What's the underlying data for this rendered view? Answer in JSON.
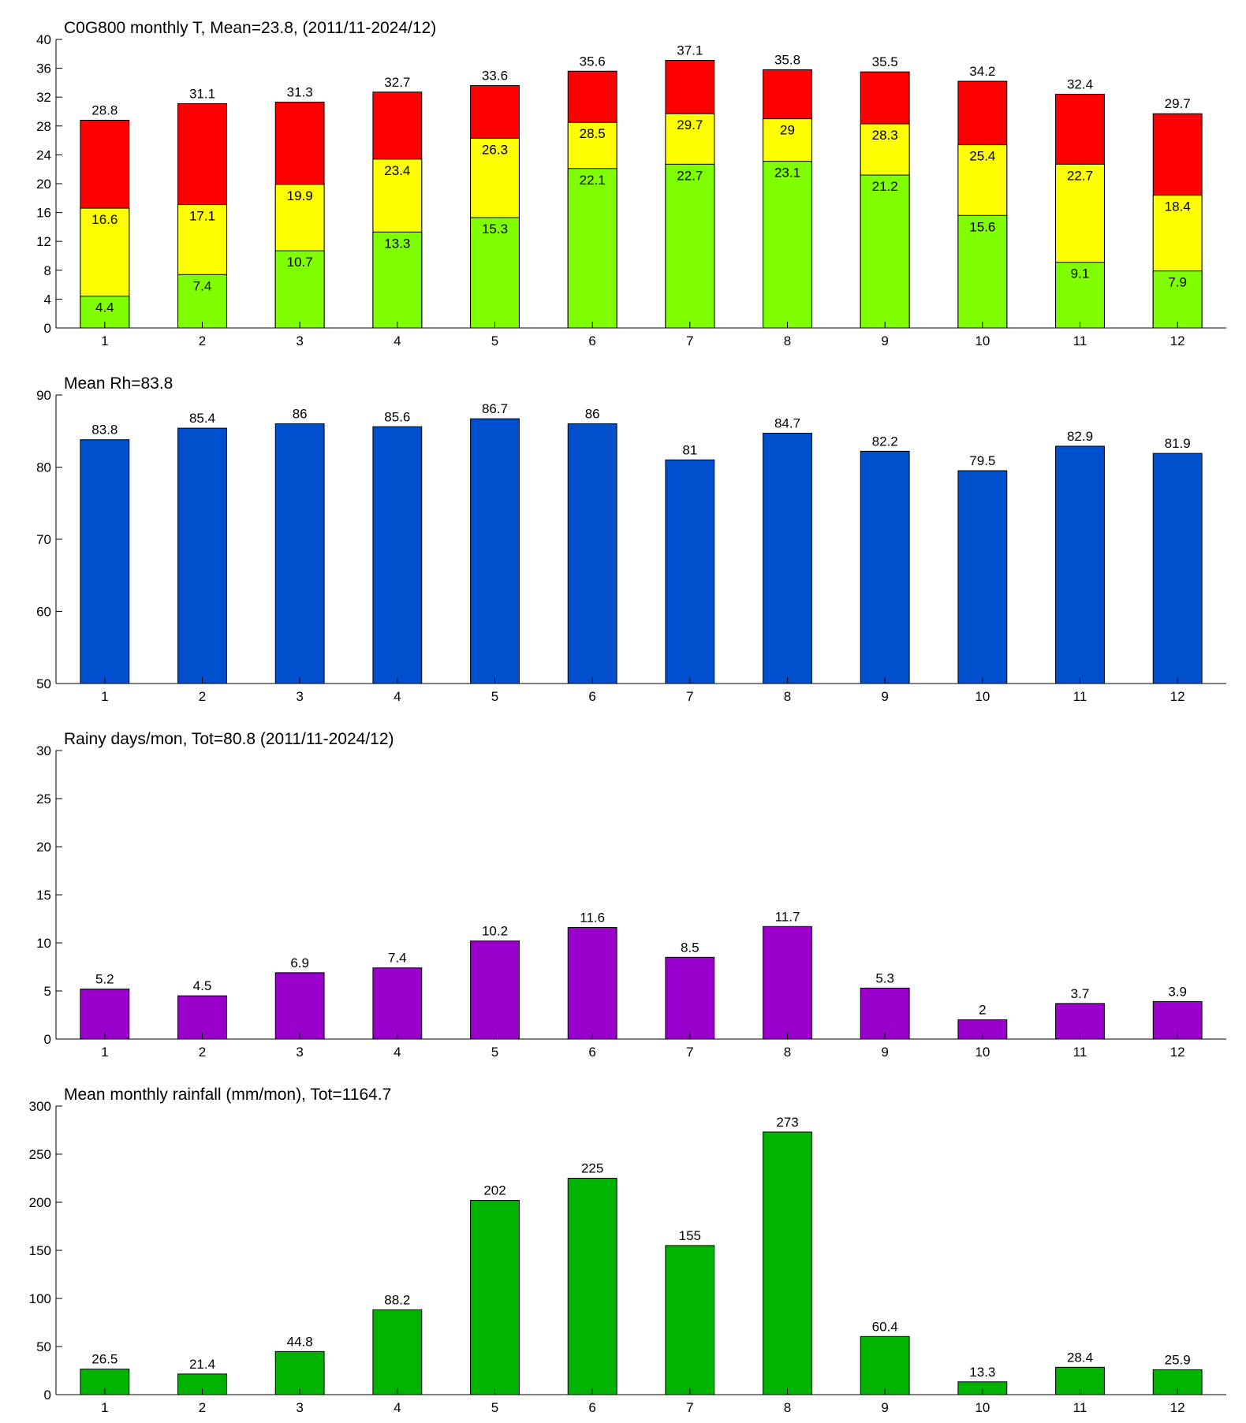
{
  "chart_data": [
    {
      "type": "bar",
      "title": "C0G800 monthly T, Mean=23.8, (2011/11-2024/12)",
      "categories": [
        1,
        2,
        3,
        4,
        5,
        6,
        7,
        8,
        9,
        10,
        11,
        12
      ],
      "series": [
        {
          "color": "#ff0000",
          "values": [
            28.8,
            31.1,
            31.3,
            32.7,
            33.6,
            35.6,
            37.1,
            35.8,
            35.5,
            34.2,
            32.4,
            29.7
          ]
        },
        {
          "color": "#ffff00",
          "values": [
            16.6,
            17.1,
            19.9,
            23.4,
            26.3,
            28.5,
            29.7,
            29,
            28.3,
            25.4,
            22.7,
            18.4
          ]
        },
        {
          "color": "#80ff00",
          "values": [
            4.4,
            7.4,
            10.7,
            13.3,
            15.3,
            22.1,
            22.7,
            23.1,
            21.2,
            15.6,
            9.1,
            7.9
          ]
        }
      ],
      "ylim": [
        0,
        40
      ],
      "yticks": [
        0,
        4,
        8,
        12,
        16,
        20,
        24,
        28,
        32,
        36,
        40
      ]
    },
    {
      "type": "bar",
      "title": "Mean Rh=83.8",
      "categories": [
        1,
        2,
        3,
        4,
        5,
        6,
        7,
        8,
        9,
        10,
        11,
        12
      ],
      "series": [
        {
          "color": "#004fcc",
          "values": [
            83.8,
            85.4,
            86,
            85.6,
            86.7,
            86,
            81,
            84.7,
            82.2,
            79.5,
            82.9,
            81.9
          ]
        }
      ],
      "ylim": [
        50,
        90
      ],
      "yticks": [
        50,
        60,
        70,
        80,
        90
      ]
    },
    {
      "type": "bar",
      "title": "Rainy days/mon, Tot=80.8 (2011/11-2024/12)",
      "categories": [
        1,
        2,
        3,
        4,
        5,
        6,
        7,
        8,
        9,
        10,
        11,
        12
      ],
      "series": [
        {
          "color": "#9900cc",
          "values": [
            5.2,
            4.5,
            6.9,
            7.4,
            10.2,
            11.6,
            8.5,
            11.7,
            5.3,
            2,
            3.7,
            3.9
          ]
        }
      ],
      "ylim": [
        0,
        30
      ],
      "yticks": [
        0,
        5,
        10,
        15,
        20,
        25,
        30
      ]
    },
    {
      "type": "bar",
      "title": "Mean monthly rainfall (mm/mon), Tot=1164.7",
      "categories": [
        1,
        2,
        3,
        4,
        5,
        6,
        7,
        8,
        9,
        10,
        11,
        12
      ],
      "series": [
        {
          "color": "#00b300",
          "values": [
            26.5,
            21.4,
            44.8,
            88.2,
            202,
            225,
            155,
            273,
            60.4,
            13.3,
            28.4,
            25.9
          ]
        }
      ],
      "ylim": [
        0,
        300
      ],
      "yticks": [
        0,
        50,
        100,
        150,
        200,
        250,
        300
      ]
    }
  ]
}
